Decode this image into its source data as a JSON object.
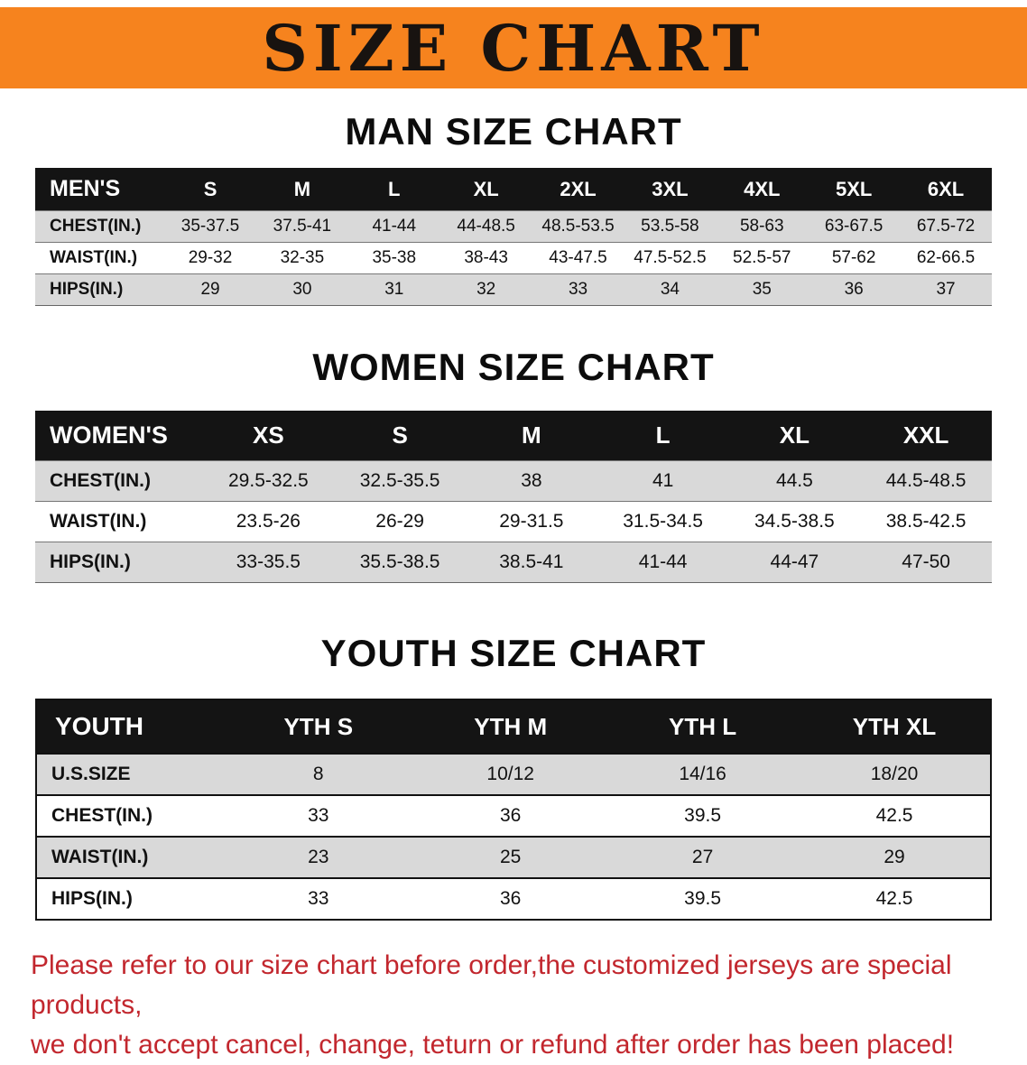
{
  "banner": {
    "title": "SIZE CHART"
  },
  "colors": {
    "banner_bg": "#f6831e",
    "header_bg": "#141414",
    "row_alt": "#d9d9d9",
    "footer_text": "#c2272e"
  },
  "sections": [
    {
      "heading": "MAN SIZE CHART",
      "table": {
        "header": [
          "MEN'S",
          "S",
          "M",
          "L",
          "XL",
          "2XL",
          "3XL",
          "4XL",
          "5XL",
          "6XL"
        ],
        "rows": [
          {
            "label": "CHEST(IN.)",
            "values": [
              "35-37.5",
              "37.5-41",
              "41-44",
              "44-48.5",
              "48.5-53.5",
              "53.5-58",
              "58-63",
              "63-67.5",
              "67.5-72"
            ]
          },
          {
            "label": "WAIST(IN.)",
            "values": [
              "29-32",
              "32-35",
              "35-38",
              "38-43",
              "43-47.5",
              "47.5-52.5",
              "52.5-57",
              "57-62",
              "62-66.5"
            ]
          },
          {
            "label": "HIPS(IN.)",
            "values": [
              "29",
              "30",
              "31",
              "32",
              "33",
              "34",
              "35",
              "36",
              "37"
            ]
          }
        ]
      }
    },
    {
      "heading": "WOMEN SIZE CHART",
      "table": {
        "header": [
          "WOMEN'S",
          "XS",
          "S",
          "M",
          "L",
          "XL",
          "XXL"
        ],
        "rows": [
          {
            "label": "CHEST(IN.)",
            "values": [
              "29.5-32.5",
              "32.5-35.5",
              "38",
              "41",
              "44.5",
              "44.5-48.5"
            ]
          },
          {
            "label": "WAIST(IN.)",
            "values": [
              "23.5-26",
              "26-29",
              "29-31.5",
              "31.5-34.5",
              "34.5-38.5",
              "38.5-42.5"
            ]
          },
          {
            "label": "HIPS(IN.)",
            "values": [
              "33-35.5",
              "35.5-38.5",
              "38.5-41",
              "41-44",
              "44-47",
              "47-50"
            ]
          }
        ]
      }
    },
    {
      "heading": "YOUTH SIZE CHART",
      "table": {
        "header": [
          "YOUTH",
          "YTH S",
          "YTH M",
          "YTH L",
          "YTH XL"
        ],
        "rows": [
          {
            "label": "U.S.SIZE",
            "values": [
              "8",
              "10/12",
              "14/16",
              "18/20"
            ]
          },
          {
            "label": "CHEST(IN.)",
            "values": [
              "33",
              "36",
              "39.5",
              "42.5"
            ]
          },
          {
            "label": "WAIST(IN.)",
            "values": [
              "23",
              "25",
              "27",
              "29"
            ]
          },
          {
            "label": "HIPS(IN.)",
            "values": [
              "33",
              "36",
              "39.5",
              "42.5"
            ]
          }
        ]
      }
    }
  ],
  "footer": {
    "line1": "Please refer to our size chart before order,the customized jerseys are special products,",
    "line2": "we don't accept cancel, change, teturn or refund after order has been placed!"
  }
}
